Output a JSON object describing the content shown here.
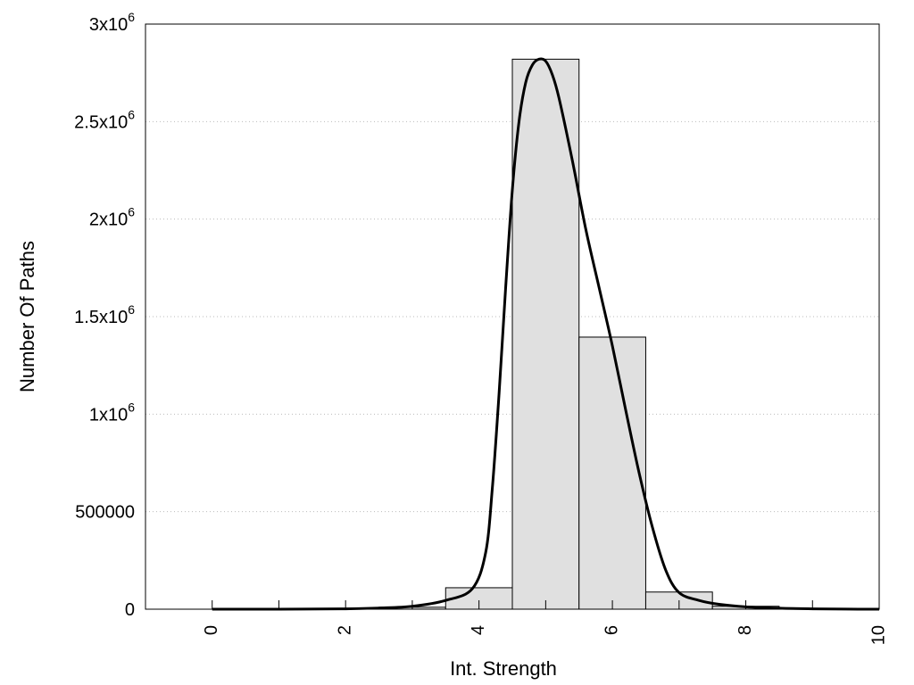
{
  "chart_data": {
    "type": "bar",
    "title": "",
    "xlabel": "Int. Strength",
    "ylabel": "Number Of Paths",
    "xlim": [
      -1,
      10
    ],
    "ylim": [
      0,
      3000000
    ],
    "grid": true,
    "x_ticks": [
      {
        "value": 0,
        "label": "0"
      },
      {
        "value": 2,
        "label": "2"
      },
      {
        "value": 4,
        "label": "4"
      },
      {
        "value": 6,
        "label": "6"
      },
      {
        "value": 8,
        "label": "8"
      },
      {
        "value": 10,
        "label": "10"
      }
    ],
    "y_ticks": [
      {
        "value": 0,
        "base": "0",
        "exp": ""
      },
      {
        "value": 500000,
        "base": "500000",
        "exp": ""
      },
      {
        "value": 1000000,
        "base": "1x10",
        "exp": "6"
      },
      {
        "value": 1500000,
        "base": "1.5x10",
        "exp": "6"
      },
      {
        "value": 2000000,
        "base": "2x10",
        "exp": "6"
      },
      {
        "value": 2500000,
        "base": "2.5x10",
        "exp": "6"
      },
      {
        "value": 3000000,
        "base": "3x10",
        "exp": "6"
      }
    ],
    "bars": {
      "x": [
        0,
        1,
        2,
        3,
        4,
        5,
        6,
        7,
        8,
        9,
        10
      ],
      "values": [
        0,
        0,
        0,
        10000,
        110000,
        2820000,
        1395000,
        88000,
        15000,
        3000,
        0
      ],
      "fill": "#e0e0e0",
      "stroke": "#000000"
    },
    "curve": {
      "color": "#000000",
      "x": [
        0,
        1,
        2,
        2.5,
        3,
        3.5,
        3.9,
        4.1,
        4.2,
        4.3,
        4.4,
        4.5,
        4.6,
        4.7,
        4.8,
        4.9,
        5.0,
        5.1,
        5.2,
        5.4,
        5.6,
        5.8,
        6.0,
        6.2,
        6.4,
        6.6,
        6.8,
        7.0,
        7.3,
        7.6,
        8.0,
        8.5,
        9.0,
        9.5,
        10
      ],
      "y": [
        0,
        0,
        2000,
        6000,
        15000,
        45000,
        105000,
        290000,
        620000,
        1100000,
        1650000,
        2150000,
        2500000,
        2700000,
        2790000,
        2820000,
        2810000,
        2740000,
        2620000,
        2300000,
        1950000,
        1650000,
        1350000,
        1020000,
        700000,
        420000,
        200000,
        85000,
        45000,
        25000,
        12000,
        5000,
        2000,
        500,
        0
      ]
    }
  }
}
